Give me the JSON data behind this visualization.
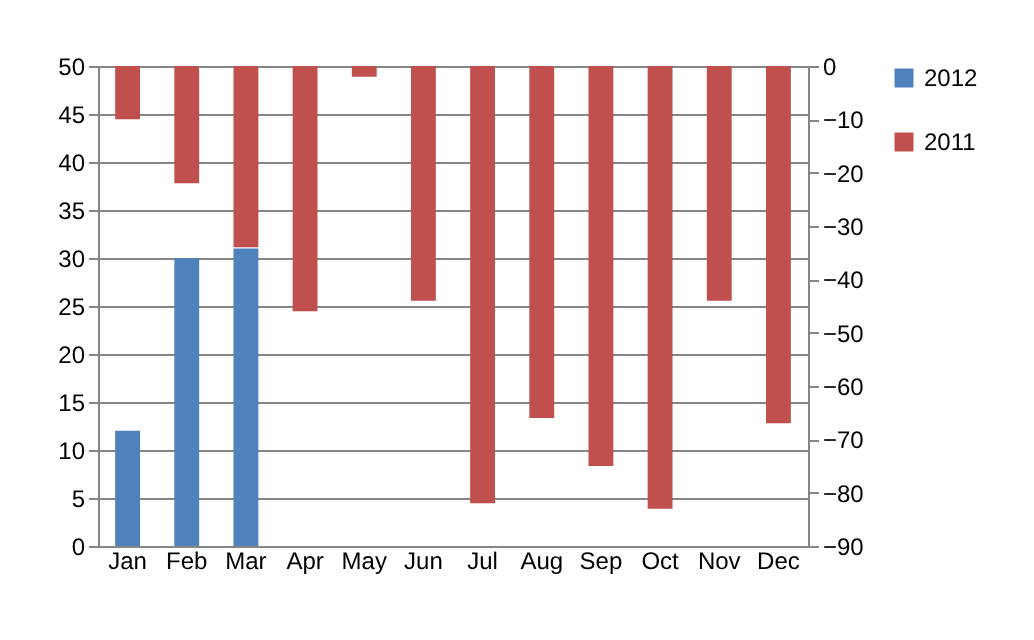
{
  "chart_data": {
    "type": "bar",
    "categories": [
      "Jan",
      "Feb",
      "Mar",
      "Apr",
      "May",
      "Jun",
      "Jul",
      "Aug",
      "Sep",
      "Oct",
      "Nov",
      "Dec"
    ],
    "series": [
      {
        "name": "2012",
        "color": "#4f81bd",
        "values": [
          12,
          30,
          31,
          null,
          null,
          null,
          null,
          null,
          null,
          null,
          null,
          null
        ]
      },
      {
        "name": "2011",
        "color": "#c0504d",
        "axis": "y2",
        "values": [
          -10,
          -22,
          -34,
          -46,
          -2,
          -44,
          -82,
          -66,
          -75,
          -83,
          -44,
          -67
        ]
      }
    ],
    "ylim": [
      0,
      50
    ],
    "yticks": [
      0,
      5,
      10,
      15,
      20,
      25,
      30,
      35,
      40,
      45,
      50
    ],
    "y2lim": [
      -90,
      0
    ],
    "y2ticks": [
      -90,
      -80,
      -70,
      -60,
      -50,
      -40,
      -30,
      -20,
      -10,
      0
    ],
    "grid": "y",
    "legend": "right"
  }
}
